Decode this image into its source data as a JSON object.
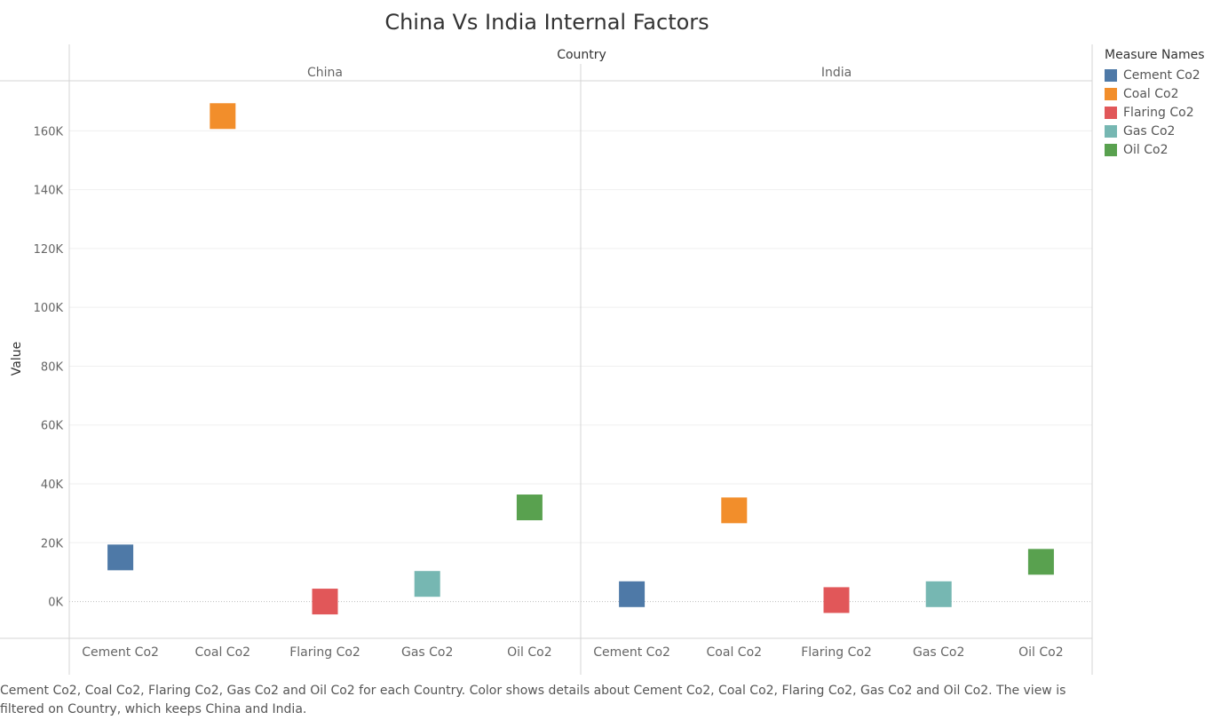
{
  "chart_data": {
    "type": "scatter",
    "title": "China Vs India Internal Factors",
    "column_header": "Country",
    "panels": [
      "China",
      "India"
    ],
    "categories": [
      "Cement Co2",
      "Coal Co2",
      "Flaring Co2",
      "Gas Co2",
      "Oil Co2"
    ],
    "ylabel": "Value",
    "ylim": [
      -12500,
      177000
    ],
    "yticks": [
      0,
      20000,
      40000,
      60000,
      80000,
      100000,
      120000,
      140000,
      160000
    ],
    "ytick_labels": [
      "0K",
      "20K",
      "40K",
      "60K",
      "80K",
      "100K",
      "120K",
      "140K",
      "160K"
    ],
    "grid": true,
    "legend_title": "Measure Names",
    "legend_position": "right",
    "series": [
      {
        "name": "Cement Co2",
        "color": "#4e79a7",
        "values": {
          "China": 15000,
          "India": 2500
        }
      },
      {
        "name": "Coal Co2",
        "color": "#f28e2b",
        "values": {
          "China": 165000,
          "India": 31000
        }
      },
      {
        "name": "Flaring Co2",
        "color": "#e15759",
        "values": {
          "China": 0,
          "India": 500
        }
      },
      {
        "name": "Gas Co2",
        "color": "#76b7b2",
        "values": {
          "China": 6000,
          "India": 2500
        }
      },
      {
        "name": "Oil Co2",
        "color": "#59a14f",
        "values": {
          "China": 32000,
          "India": 13500
        }
      }
    ]
  },
  "caption": "Cement Co2, Coal Co2, Flaring Co2, Gas Co2 and Oil Co2 for each Country.  Color shows details about Cement Co2, Coal Co2, Flaring Co2, Gas Co2 and Oil Co2. The view is filtered on Country, which keeps China and India."
}
